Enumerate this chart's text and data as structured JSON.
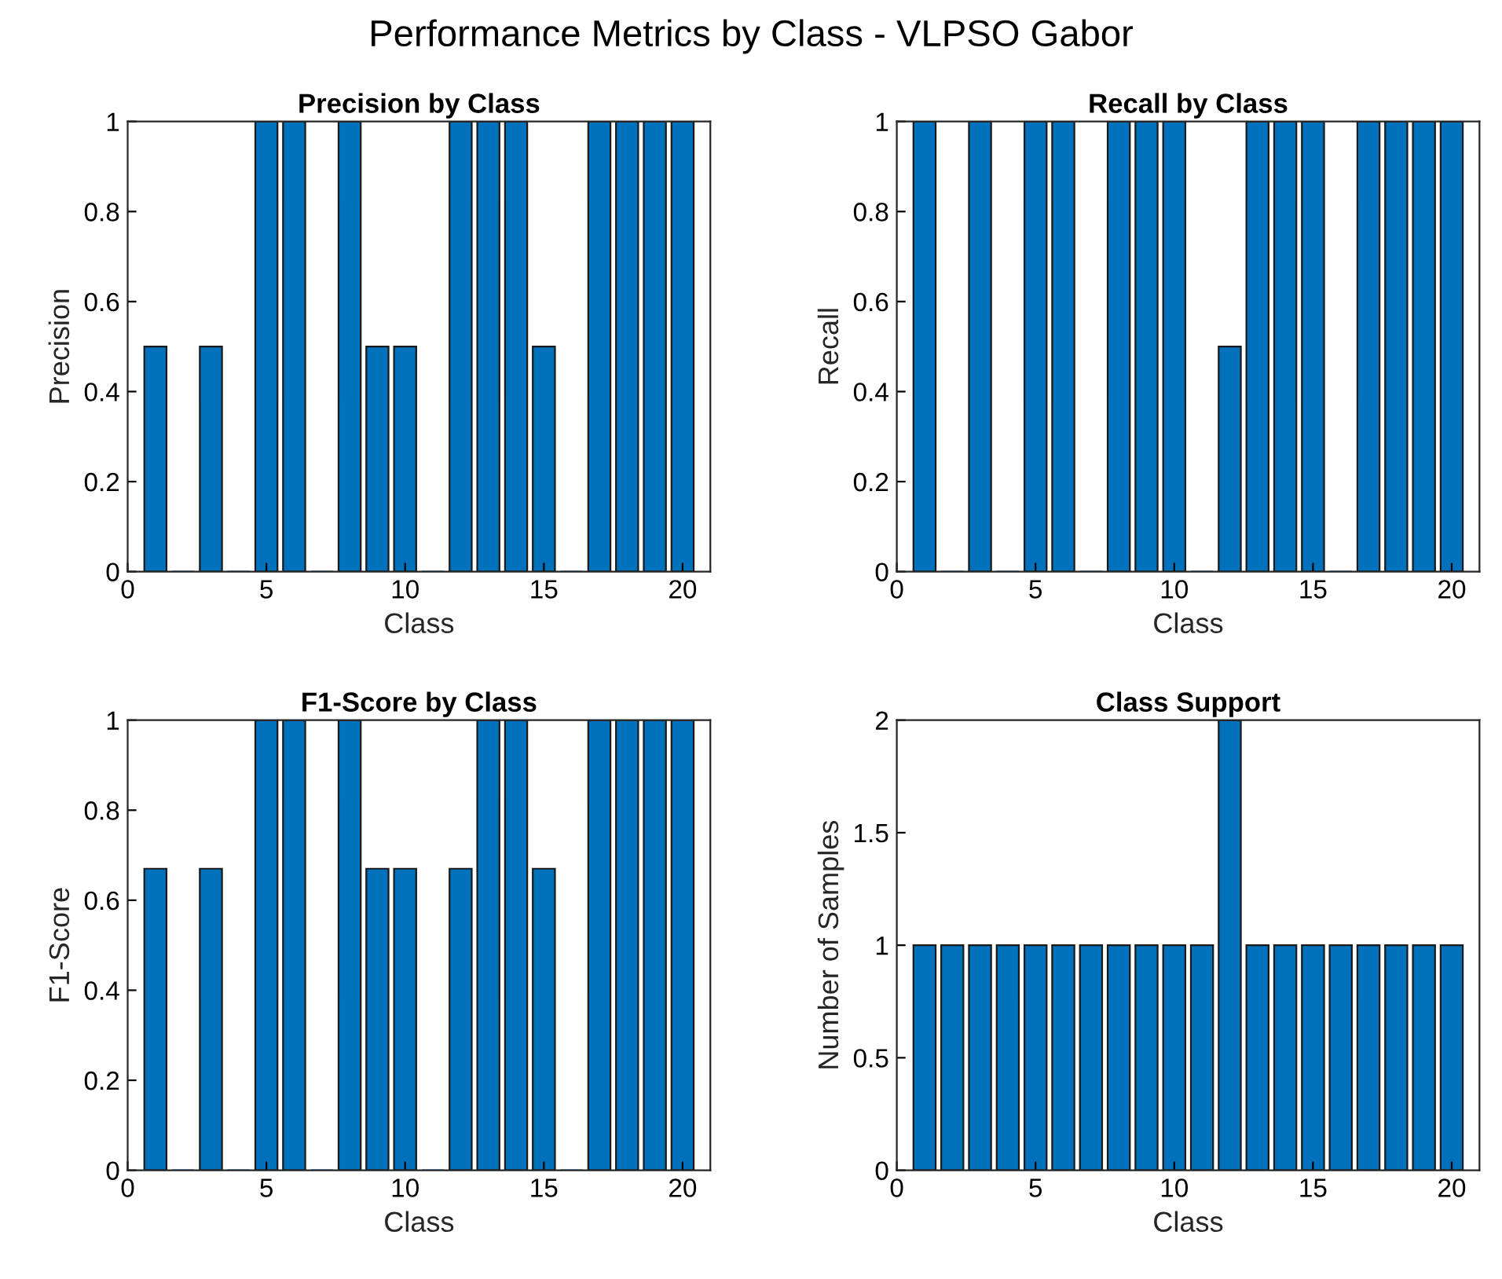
{
  "chart_data": [
    {
      "type": "other",
      "title": "Performance Metrics by Class - VLPSO Gabor"
    },
    {
      "type": "bar",
      "title": "Precision by Class",
      "xlabel": "Class",
      "ylabel": "Precision",
      "x": [
        1,
        2,
        3,
        4,
        5,
        6,
        7,
        8,
        9,
        10,
        11,
        12,
        13,
        14,
        15,
        16,
        17,
        18,
        19,
        20
      ],
      "values": [
        0.5,
        0,
        0.5,
        0,
        1,
        1,
        0,
        1,
        0.5,
        0.5,
        0,
        1,
        1,
        1,
        0.5,
        0,
        1,
        1,
        1,
        1
      ],
      "color": "#0072bd",
      "xlim": [
        0,
        21
      ],
      "xticks": [
        0,
        5,
        10,
        15,
        20
      ],
      "ylim": [
        0,
        1
      ],
      "yticks": [
        0,
        0.2,
        0.4,
        0.6,
        0.8,
        1
      ]
    },
    {
      "type": "bar",
      "title": "Recall by Class",
      "xlabel": "Class",
      "ylabel": "Recall",
      "x": [
        1,
        2,
        3,
        4,
        5,
        6,
        7,
        8,
        9,
        10,
        11,
        12,
        13,
        14,
        15,
        16,
        17,
        18,
        19,
        20
      ],
      "values": [
        1,
        0,
        1,
        0,
        1,
        1,
        0,
        1,
        1,
        1,
        0,
        0.5,
        1,
        1,
        1,
        0,
        1,
        1,
        1,
        1
      ],
      "color": "#0072bd",
      "xlim": [
        0,
        21
      ],
      "xticks": [
        0,
        5,
        10,
        15,
        20
      ],
      "ylim": [
        0,
        1
      ],
      "yticks": [
        0,
        0.2,
        0.4,
        0.6,
        0.8,
        1
      ]
    },
    {
      "type": "bar",
      "title": "F1-Score by Class",
      "xlabel": "Class",
      "ylabel": "F1-Score",
      "x": [
        1,
        2,
        3,
        4,
        5,
        6,
        7,
        8,
        9,
        10,
        11,
        12,
        13,
        14,
        15,
        16,
        17,
        18,
        19,
        20
      ],
      "values": [
        0.67,
        0,
        0.67,
        0,
        1,
        1,
        0,
        1,
        0.67,
        0.67,
        0,
        0.67,
        1,
        1,
        0.67,
        0,
        1,
        1,
        1,
        1
      ],
      "color": "#0072bd",
      "xlim": [
        0,
        21
      ],
      "xticks": [
        0,
        5,
        10,
        15,
        20
      ],
      "ylim": [
        0,
        1
      ],
      "yticks": [
        0,
        0.2,
        0.4,
        0.6,
        0.8,
        1
      ]
    },
    {
      "type": "bar",
      "title": "Class Support",
      "xlabel": "Class",
      "ylabel": "Number of Samples",
      "x": [
        1,
        2,
        3,
        4,
        5,
        6,
        7,
        8,
        9,
        10,
        11,
        12,
        13,
        14,
        15,
        16,
        17,
        18,
        19,
        20
      ],
      "values": [
        1,
        1,
        1,
        1,
        1,
        1,
        1,
        1,
        1,
        1,
        1,
        2,
        1,
        1,
        1,
        1,
        1,
        1,
        1,
        1
      ],
      "color": "#0072bd",
      "xlim": [
        0,
        21
      ],
      "xticks": [
        0,
        5,
        10,
        15,
        20
      ],
      "ylim": [
        0,
        2
      ],
      "yticks": [
        0,
        0.5,
        1,
        1.5,
        2
      ]
    }
  ]
}
